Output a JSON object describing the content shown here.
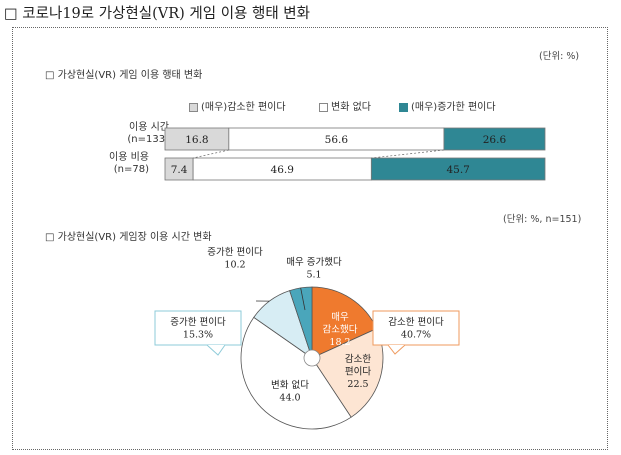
{
  "heading": "□ 코로나19로 가상현실(VR) 게임 이용 행태 변화",
  "colors": {
    "decrease": "#d9d9d9",
    "nochange": "#ffffff",
    "increase": "#2f8794",
    "pie_much_dec": "#ef7a2e",
    "pie_dec": "#fde5d3",
    "pie_nochange": "#ffffff",
    "pie_inc": "#d7edf4",
    "pie_much_inc": "#4aa6bb"
  },
  "chart_data": [
    {
      "type": "bar",
      "title": "□ 가상현실(VR) 게임 이용 행태 변화",
      "unit": "(단위: %)",
      "legend": [
        "(매우)감소한 편이다",
        "변화 없다",
        "(매우)증가한 편이다"
      ],
      "categories": [
        {
          "label": "이용 시간",
          "n": "(n=133)"
        },
        {
          "label": "이용 비용",
          "n": "(n=78)"
        }
      ],
      "series": [
        {
          "name": "(매우)감소한 편이다",
          "values": [
            16.8,
            7.4
          ]
        },
        {
          "name": "변화 없다",
          "values": [
            56.6,
            46.9
          ]
        },
        {
          "name": "(매우)증가한 편이다",
          "values": [
            26.6,
            45.7
          ]
        }
      ]
    },
    {
      "type": "pie",
      "title": "□ 가상현실(VR) 게임장 이용 시간 변화",
      "unit": "(단위: %, n=151)",
      "slices": [
        {
          "name": "매우 감소했다",
          "value": 18.2,
          "label_lines": [
            "매우",
            "감소했다",
            "18.2"
          ]
        },
        {
          "name": "감소한 편이다",
          "value": 22.5,
          "label_lines": [
            "감소한",
            "편이다",
            "22.5"
          ]
        },
        {
          "name": "변화 없다",
          "value": 44.0,
          "label_lines": [
            "변화 없다",
            "44.0"
          ]
        },
        {
          "name": "증가한 편이다",
          "value": 10.2,
          "label_lines": [
            "증가한 편이다",
            "10.2"
          ]
        },
        {
          "name": "매우 증가했다",
          "value": 5.1,
          "label_lines": [
            "매우 증가했다",
            "5.1"
          ]
        }
      ],
      "callouts": [
        {
          "title": "감소한 편이다",
          "value": "40.7%"
        },
        {
          "title": "증가한 편이다",
          "value": "15.3%"
        }
      ]
    }
  ]
}
